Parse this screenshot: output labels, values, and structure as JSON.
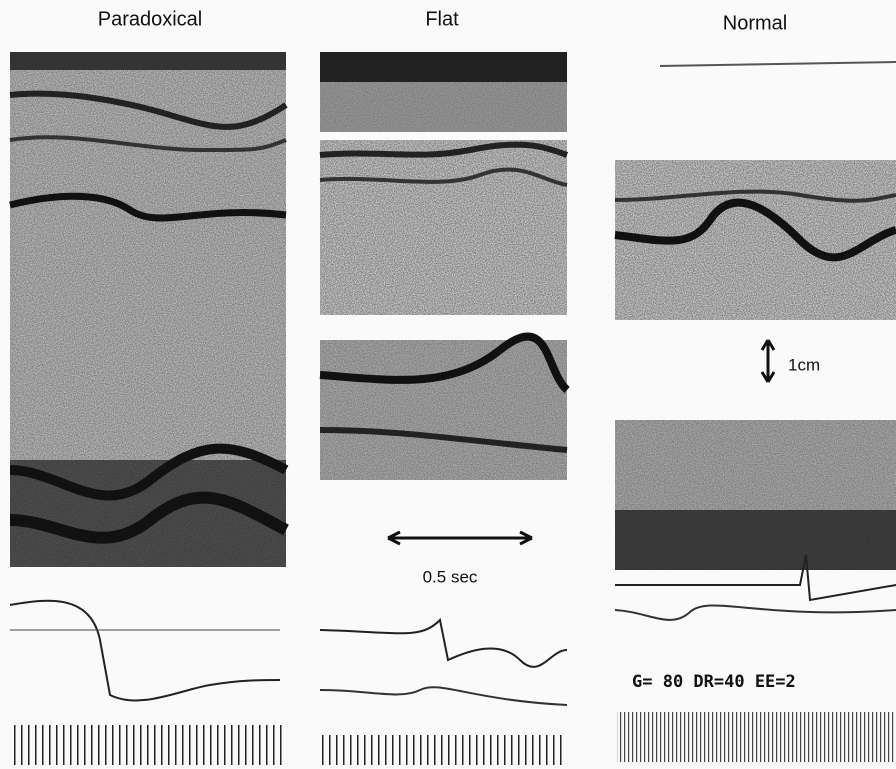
{
  "panels": [
    {
      "label": "Paradoxical"
    },
    {
      "label": "Flat"
    },
    {
      "label": "Normal"
    }
  ],
  "annotations": {
    "scale_distance": "1cm",
    "scale_time": "0.5 sec",
    "settings": "G= 80 DR=40 EE=2"
  }
}
